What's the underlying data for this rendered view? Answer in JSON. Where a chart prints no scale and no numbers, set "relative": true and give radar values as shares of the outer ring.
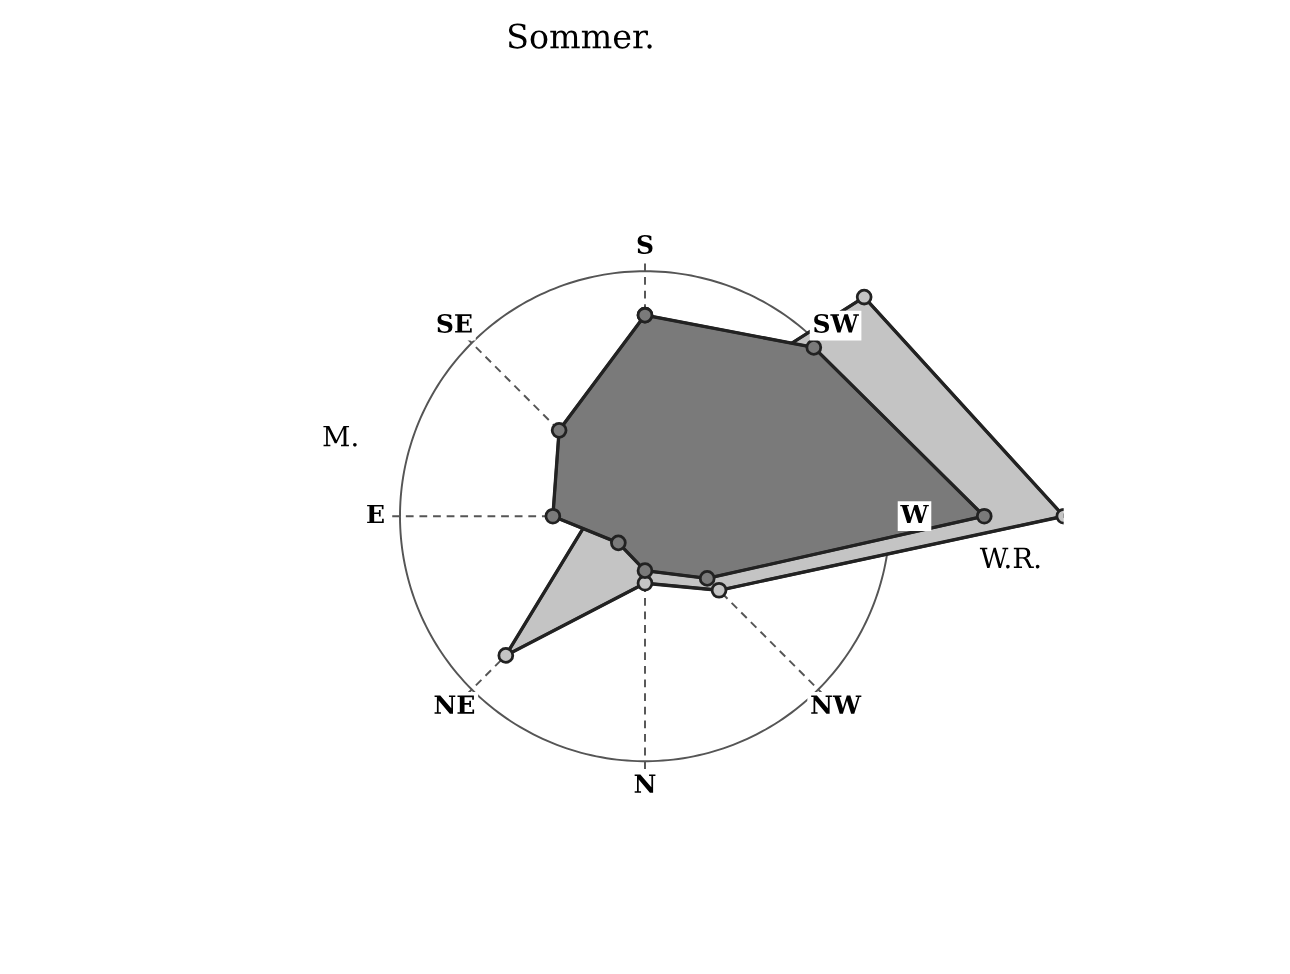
{
  "chart_data": {
    "type": "radar",
    "title": "Sommer.",
    "relative": true,
    "categories": [
      "S",
      "SW",
      "W",
      "NW",
      "N",
      "NE",
      "E",
      "SE"
    ],
    "series": [
      {
        "color": "#c4c4c4",
        "values": [
          0.19,
          0.74,
          1,
          0.25,
          0.16,
          0.47,
          0.13,
          0.15
        ]
      },
      {
        "color": "#7a7a7a",
        "values": [
          0.48,
          0.57,
          0.81,
          0.21,
          0.13,
          0.09,
          0.22,
          0.29
        ]
      }
    ],
    "annotations": [
      "W.R.",
      "M."
    ],
    "marker": "circle",
    "grid": true,
    "legend": false
  }
}
